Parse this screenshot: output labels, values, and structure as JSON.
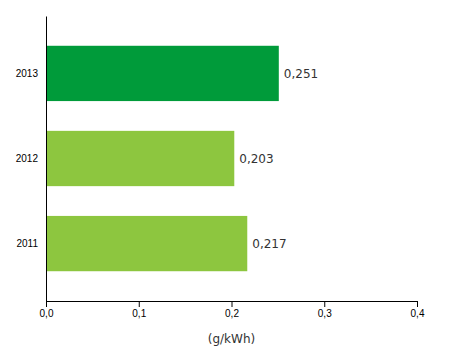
{
  "chart_data": {
    "type": "bar",
    "orientation": "horizontal",
    "categories": [
      "2011",
      "2012",
      "2013"
    ],
    "values": [
      0.217,
      0.203,
      0.251
    ],
    "value_labels": [
      "0,217",
      "0,203",
      "0,251"
    ],
    "data_labels": true,
    "colors": [
      "#8dc63f",
      "#8dc63f",
      "#009b3a"
    ],
    "xlabel": "(g/kWh)",
    "xlim": [
      0,
      0.4
    ],
    "xticks": [
      {
        "value": 0.0,
        "label": "0,0"
      },
      {
        "value": 0.1,
        "label": "0,1"
      },
      {
        "value": 0.2,
        "label": "0,2"
      },
      {
        "value": 0.3,
        "label": "0,3"
      },
      {
        "value": 0.4,
        "label": "0,4"
      }
    ],
    "grid": false
  }
}
